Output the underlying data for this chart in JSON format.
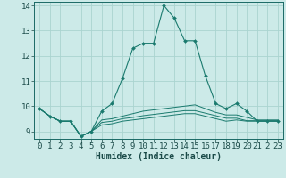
{
  "title": "",
  "xlabel": "Humidex (Indice chaleur)",
  "bg_color": "#cceae8",
  "grid_color": "#aad4d0",
  "line_color": "#1a7a6e",
  "xmin": 0,
  "xmax": 23,
  "ymin": 9,
  "ymax": 14,
  "series": [
    [
      9.9,
      9.6,
      9.4,
      9.4,
      8.8,
      9.0,
      9.8,
      10.1,
      11.1,
      12.3,
      12.5,
      12.5,
      14.0,
      13.5,
      12.6,
      12.6,
      11.2,
      10.1,
      9.9,
      10.1,
      9.8,
      9.4,
      9.4,
      9.4
    ],
    [
      9.9,
      9.6,
      9.4,
      9.4,
      8.8,
      9.0,
      9.45,
      9.5,
      9.6,
      9.7,
      9.8,
      9.85,
      9.9,
      9.95,
      10.0,
      10.05,
      9.9,
      9.75,
      9.65,
      9.65,
      9.55,
      9.45,
      9.45,
      9.45
    ],
    [
      9.9,
      9.6,
      9.4,
      9.4,
      8.8,
      9.0,
      9.35,
      9.4,
      9.5,
      9.55,
      9.62,
      9.67,
      9.72,
      9.77,
      9.82,
      9.82,
      9.72,
      9.62,
      9.52,
      9.52,
      9.42,
      9.42,
      9.42,
      9.42
    ],
    [
      9.9,
      9.6,
      9.4,
      9.4,
      8.8,
      9.0,
      9.25,
      9.3,
      9.4,
      9.45,
      9.5,
      9.55,
      9.6,
      9.65,
      9.7,
      9.7,
      9.6,
      9.5,
      9.4,
      9.45,
      9.4,
      9.4,
      9.4,
      9.4
    ]
  ],
  "x": [
    0,
    1,
    2,
    3,
    4,
    5,
    6,
    7,
    8,
    9,
    10,
    11,
    12,
    13,
    14,
    15,
    16,
    17,
    18,
    19,
    20,
    21,
    22,
    23
  ],
  "yticks": [
    9,
    10,
    11,
    12,
    13,
    14
  ],
  "marker": "D",
  "markersize": 2.0,
  "linewidth_main": 0.8,
  "linewidth_other": 0.7,
  "xlabel_fontsize": 7,
  "tick_fontsize": 6.5
}
